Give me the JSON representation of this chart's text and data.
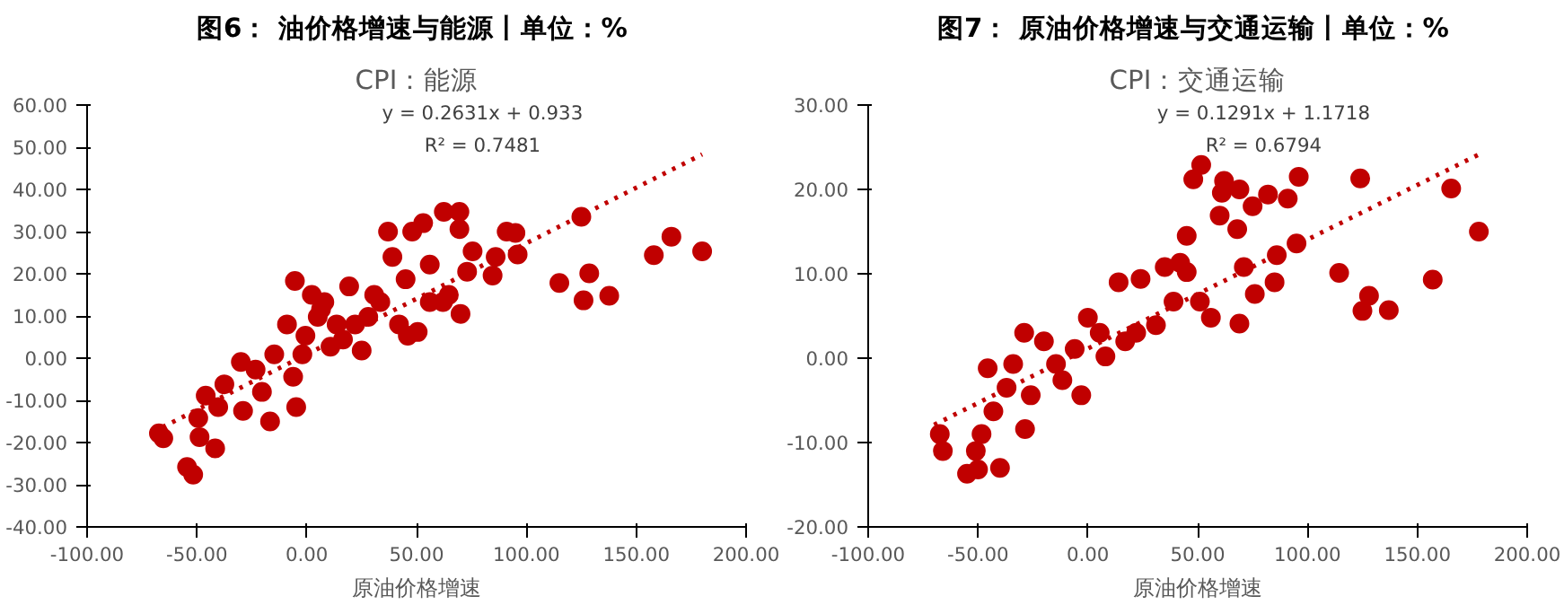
{
  "chart_data": [
    {
      "type": "scatter",
      "title": "图6：  油价格增速与能源丨单位：%",
      "subtitle": "CPI：能源",
      "xlabel": "原油价格增速",
      "grid": false,
      "xlim": [
        -100,
        200
      ],
      "xticks": [
        {
          "value": -100,
          "label": "-100.00"
        },
        {
          "value": -50,
          "label": "-50.00"
        },
        {
          "value": 0,
          "label": "0.00"
        },
        {
          "value": 50,
          "label": "50.00"
        },
        {
          "value": 100,
          "label": "100.00"
        },
        {
          "value": 150,
          "label": "150.00"
        },
        {
          "value": 200,
          "label": "200.00"
        }
      ],
      "ylim": [
        -40,
        60
      ],
      "yticks": [
        {
          "value": -40,
          "label": "-40.00"
        },
        {
          "value": -30,
          "label": "-30.00"
        },
        {
          "value": -20,
          "label": "-20.00"
        },
        {
          "value": -10,
          "label": "-10.00"
        },
        {
          "value": 0,
          "label": "0.00"
        },
        {
          "value": 10,
          "label": "10.00"
        },
        {
          "value": 20,
          "label": "20.00"
        },
        {
          "value": 30,
          "label": "30.00"
        },
        {
          "value": 40,
          "label": "40.00"
        },
        {
          "value": 50,
          "label": "50.00"
        },
        {
          "value": 60,
          "label": "60.00"
        }
      ],
      "annotations": [
        "y = 0.2631x + 0.933",
        "R² = 0.7481"
      ],
      "series": [
        {
          "type": "scatter",
          "marker": "circle",
          "color": "#c00000",
          "x": [
            180,
            166,
            158,
            125,
            128.6,
            126,
            137.7,
            115,
            96,
            95,
            91,
            84.6,
            86,
            75.5,
            70,
            69.5,
            69.5,
            62.4,
            53,
            48,
            37,
            50.5,
            62,
            56,
            45,
            39,
            33.5,
            28,
            25,
            19.3,
            22,
            13.6,
            8,
            5,
            -5.4,
            -0.6,
            -2,
            -6.2,
            -9,
            -14.8,
            -16.7,
            -4.8,
            -30,
            -29,
            -37.5,
            -40.3,
            -46,
            -41.7,
            -48.8,
            -51.7,
            -54.5,
            -49.4,
            -67.3,
            -65.3,
            -20.4,
            -23.3,
            10.8,
            16.5,
            30.7,
            56,
            64.7,
            73,
            42,
            46,
            2.3,
            6.5
          ],
          "values": [
            25.3,
            28.8,
            24.4,
            33.5,
            20.1,
            13.7,
            14.8,
            17.8,
            24.6,
            29.7,
            30,
            19.6,
            24,
            25.3,
            10.5,
            30.6,
            34.7,
            34.7,
            32,
            30,
            30,
            6.2,
            13.3,
            22.2,
            18.7,
            24,
            13.3,
            9.8,
            1.8,
            17,
            8,
            8,
            13.3,
            9.8,
            18.3,
            5.3,
            0.9,
            -4.4,
            8,
            0.9,
            -15,
            -11.6,
            -0.9,
            -12.5,
            -6.2,
            -11.6,
            -8.9,
            -21.4,
            -18.7,
            -27.6,
            -25.8,
            -14.2,
            -17.8,
            -19,
            -8,
            -2.7,
            2.7,
            4.4,
            15,
            13.3,
            15,
            20.5,
            8,
            5.3,
            15,
            11.6
          ]
        },
        {
          "type": "line",
          "line_style": "dotted",
          "color": "#c00000",
          "x": [
            -70,
            180
          ],
          "values": [
            -17.5,
            48.3
          ]
        }
      ]
    },
    {
      "type": "scatter",
      "title": "图7：  原油价格增速与交通运输丨单位：%",
      "subtitle": "CPI：交通运输",
      "xlabel": "原油价格增速",
      "grid": false,
      "xlim": [
        -100,
        200
      ],
      "xticks": [
        {
          "value": -100,
          "label": "-100.00"
        },
        {
          "value": -50,
          "label": "-50.00"
        },
        {
          "value": 0,
          "label": "0.00"
        },
        {
          "value": 50,
          "label": "50.00"
        },
        {
          "value": 100,
          "label": "100.00"
        },
        {
          "value": 150,
          "label": "150.00"
        },
        {
          "value": 200,
          "label": "200.00"
        }
      ],
      "ylim": [
        -20,
        30
      ],
      "yticks": [
        {
          "value": -20,
          "label": "-20.00"
        },
        {
          "value": -10,
          "label": "-10.00"
        },
        {
          "value": 0,
          "label": "0.00"
        },
        {
          "value": 10,
          "label": "10.00"
        },
        {
          "value": 20,
          "label": "20.00"
        },
        {
          "value": 30,
          "label": "30.00"
        }
      ],
      "annotations": [
        "y = 0.1291x + 1.1718",
        "R² = 0.6794"
      ],
      "series": [
        {
          "type": "scatter",
          "marker": "circle",
          "color": "#c00000",
          "x": [
            178,
            165.4,
            157,
            124,
            128,
            125,
            137,
            114.4,
            96,
            95,
            91,
            82,
            75,
            85,
            86,
            76,
            71,
            69,
            69,
            62,
            61,
            60,
            51.6,
            48,
            45,
            42,
            35,
            24,
            14,
            39,
            51,
            56,
            31,
            22,
            17,
            5.4,
            0,
            -6,
            -11.6,
            -3,
            -20,
            -29,
            -34,
            -37,
            -45.6,
            -26,
            -28.6,
            -43,
            -48.4,
            -51,
            -50,
            -55,
            -40,
            -67.4,
            -66,
            -14.5,
            8,
            68,
            45
          ],
          "values": [
            15,
            20.1,
            9.3,
            21.3,
            7.4,
            5.6,
            5.7,
            10.1,
            21.5,
            13.6,
            18.9,
            19.4,
            18,
            9,
            12.2,
            7.6,
            10.8,
            4.1,
            20,
            21,
            19.6,
            16.9,
            22.9,
            21.2,
            14.5,
            11.3,
            10.8,
            9.4,
            9,
            6.7,
            6.7,
            4.8,
            3.9,
            3,
            2,
            3,
            4.8,
            1.1,
            -2.6,
            -4.4,
            2,
            3,
            -0.7,
            -3.5,
            -1.2,
            -4.4,
            -8.4,
            -6.3,
            -9,
            -11,
            -13.2,
            -13.7,
            -13,
            -9,
            -11,
            -0.7,
            0.2,
            15.3,
            10.2
          ]
        },
        {
          "type": "line",
          "line_style": "dotted",
          "color": "#c00000",
          "x": [
            -70,
            180
          ],
          "values": [
            -7.9,
            24.4
          ]
        }
      ]
    }
  ]
}
